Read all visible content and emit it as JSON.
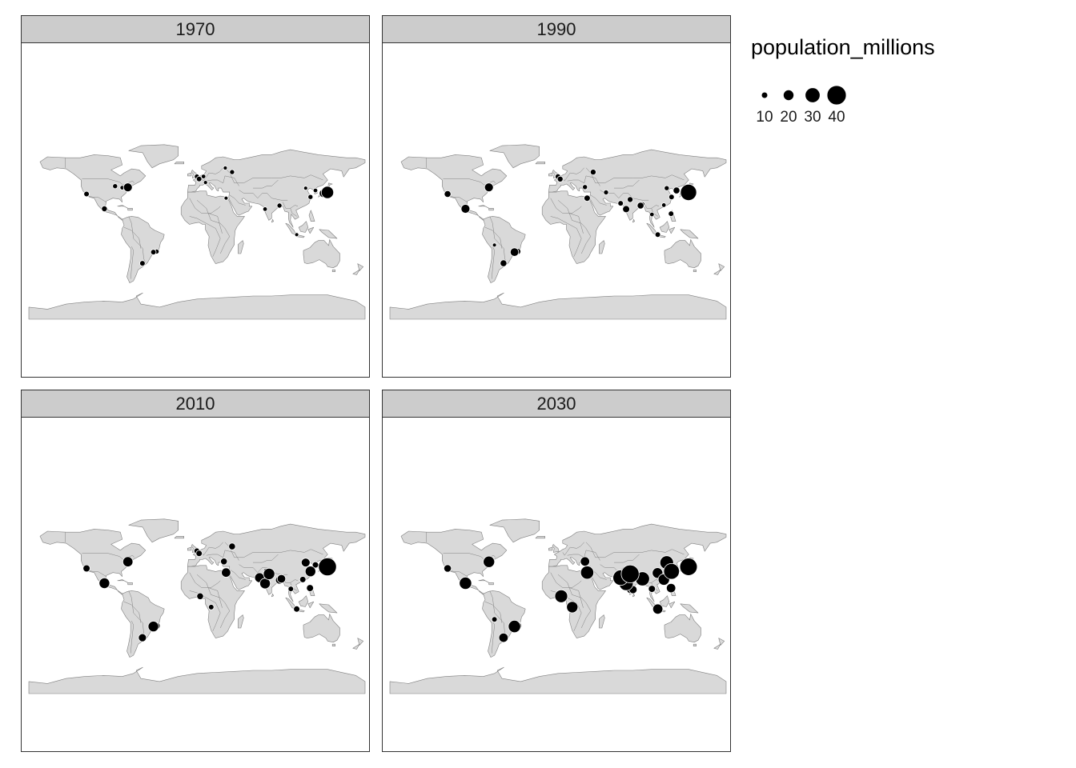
{
  "legend": {
    "title": "population_millions",
    "entries": [
      {
        "label": "10",
        "value": 10
      },
      {
        "label": "20",
        "value": 20
      },
      {
        "label": "30",
        "value": 30
      },
      {
        "label": "40",
        "value": 40
      }
    ]
  },
  "colors": {
    "land": "#d9d9d9",
    "border": "#7f7f7f",
    "point": "#000000",
    "strip": "#cccccc"
  },
  "panels": [
    {
      "year": "1970",
      "cities": [
        {
          "lon": -118.2,
          "lat": 34.1,
          "pop": 8
        },
        {
          "lon": -99.1,
          "lat": 19.4,
          "pop": 9
        },
        {
          "lon": -87.6,
          "lat": 41.9,
          "pop": 7
        },
        {
          "lon": -80.0,
          "lat": 40.4,
          "pop": 6
        },
        {
          "lon": -74.0,
          "lat": 40.7,
          "pop": 16
        },
        {
          "lon": -46.6,
          "lat": -23.5,
          "pop": 8
        },
        {
          "lon": -43.2,
          "lat": -22.9,
          "pop": 7
        },
        {
          "lon": -58.4,
          "lat": -34.6,
          "pop": 8
        },
        {
          "lon": -0.1,
          "lat": 51.5,
          "pop": 7
        },
        {
          "lon": 2.3,
          "lat": 48.9,
          "pop": 8
        },
        {
          "lon": 7.0,
          "lat": 51.5,
          "pop": 6
        },
        {
          "lon": 9.2,
          "lat": 45.5,
          "pop": 5
        },
        {
          "lon": 37.6,
          "lat": 55.8,
          "pop": 7
        },
        {
          "lon": 30.3,
          "lat": 59.9,
          "pop": 5
        },
        {
          "lon": 31.2,
          "lat": 30.0,
          "pop": 5
        },
        {
          "lon": 72.9,
          "lat": 19.1,
          "pop": 6
        },
        {
          "lon": 88.4,
          "lat": 22.6,
          "pop": 7
        },
        {
          "lon": 121.5,
          "lat": 31.2,
          "pop": 7
        },
        {
          "lon": 116.4,
          "lat": 39.9,
          "pop": 5
        },
        {
          "lon": 106.8,
          "lat": -6.2,
          "pop": 4
        },
        {
          "lon": 126.9,
          "lat": 37.6,
          "pop": 6
        },
        {
          "lon": 135.5,
          "lat": 34.7,
          "pop": 15
        },
        {
          "lon": 139.7,
          "lat": 35.7,
          "pop": 24
        }
      ]
    },
    {
      "year": "1990",
      "cities": [
        {
          "lon": -118.2,
          "lat": 34.1,
          "pop": 11
        },
        {
          "lon": -99.1,
          "lat": 19.4,
          "pop": 16
        },
        {
          "lon": -74.0,
          "lat": 40.7,
          "pop": 16
        },
        {
          "lon": -68.1,
          "lat": -16.5,
          "pop": 4
        },
        {
          "lon": -46.6,
          "lat": -23.5,
          "pop": 15
        },
        {
          "lon": -43.2,
          "lat": -22.9,
          "pop": 10
        },
        {
          "lon": -58.4,
          "lat": -34.6,
          "pop": 11
        },
        {
          "lon": -0.1,
          "lat": 51.5,
          "pop": 8
        },
        {
          "lon": 2.3,
          "lat": 48.9,
          "pop": 9
        },
        {
          "lon": 37.6,
          "lat": 55.8,
          "pop": 9
        },
        {
          "lon": 28.9,
          "lat": 41.0,
          "pop": 7
        },
        {
          "lon": 31.2,
          "lat": 30.0,
          "pop": 10
        },
        {
          "lon": 51.4,
          "lat": 35.7,
          "pop": 7
        },
        {
          "lon": 67.0,
          "lat": 24.9,
          "pop": 8
        },
        {
          "lon": 77.2,
          "lat": 28.6,
          "pop": 9
        },
        {
          "lon": 72.9,
          "lat": 19.1,
          "pop": 12
        },
        {
          "lon": 88.4,
          "lat": 22.6,
          "pop": 11
        },
        {
          "lon": 90.4,
          "lat": 23.8,
          "pop": 7
        },
        {
          "lon": 100.5,
          "lat": 13.8,
          "pop": 6
        },
        {
          "lon": 106.8,
          "lat": -6.2,
          "pop": 8
        },
        {
          "lon": 116.4,
          "lat": 39.9,
          "pop": 7
        },
        {
          "lon": 121.5,
          "lat": 31.2,
          "pop": 8
        },
        {
          "lon": 113.3,
          "lat": 23.1,
          "pop": 6
        },
        {
          "lon": 121.0,
          "lat": 14.6,
          "pop": 8
        },
        {
          "lon": 126.9,
          "lat": 37.6,
          "pop": 11
        },
        {
          "lon": 135.5,
          "lat": 34.7,
          "pop": 18
        },
        {
          "lon": 139.7,
          "lat": 35.7,
          "pop": 33
        }
      ]
    },
    {
      "year": "2010",
      "cities": [
        {
          "lon": -118.2,
          "lat": 34.1,
          "pop": 12
        },
        {
          "lon": -99.1,
          "lat": 19.4,
          "pop": 20
        },
        {
          "lon": -74.0,
          "lat": 40.7,
          "pop": 19
        },
        {
          "lon": -46.6,
          "lat": -23.5,
          "pop": 20
        },
        {
          "lon": -43.2,
          "lat": -22.9,
          "pop": 12
        },
        {
          "lon": -58.4,
          "lat": -34.6,
          "pop": 14
        },
        {
          "lon": -0.1,
          "lat": 51.5,
          "pop": 9
        },
        {
          "lon": 2.3,
          "lat": 48.9,
          "pop": 10
        },
        {
          "lon": 37.6,
          "lat": 55.8,
          "pop": 11
        },
        {
          "lon": 28.9,
          "lat": 41.0,
          "pop": 11
        },
        {
          "lon": 31.2,
          "lat": 30.0,
          "pop": 17
        },
        {
          "lon": 3.4,
          "lat": 6.5,
          "pop": 11
        },
        {
          "lon": 15.3,
          "lat": -4.3,
          "pop": 8
        },
        {
          "lon": 67.0,
          "lat": 24.9,
          "pop": 18
        },
        {
          "lon": 74.3,
          "lat": 31.5,
          "pop": 9
        },
        {
          "lon": 77.2,
          "lat": 28.6,
          "pop": 22
        },
        {
          "lon": 72.9,
          "lat": 19.1,
          "pop": 20
        },
        {
          "lon": 88.4,
          "lat": 22.6,
          "pop": 14
        },
        {
          "lon": 90.4,
          "lat": 23.8,
          "pop": 15
        },
        {
          "lon": 100.5,
          "lat": 13.8,
          "pop": 8
        },
        {
          "lon": 106.8,
          "lat": -6.2,
          "pop": 10
        },
        {
          "lon": 116.4,
          "lat": 39.9,
          "pop": 16
        },
        {
          "lon": 121.5,
          "lat": 31.2,
          "pop": 20
        },
        {
          "lon": 113.3,
          "lat": 23.1,
          "pop": 10
        },
        {
          "lon": 121.0,
          "lat": 14.6,
          "pop": 12
        },
        {
          "lon": 126.9,
          "lat": 37.6,
          "pop": 10
        },
        {
          "lon": 135.5,
          "lat": 34.7,
          "pop": 19
        },
        {
          "lon": 139.7,
          "lat": 35.7,
          "pop": 37
        }
      ]
    },
    {
      "year": "2030",
      "cities": [
        {
          "lon": -118.2,
          "lat": 34.1,
          "pop": 13
        },
        {
          "lon": -99.1,
          "lat": 19.4,
          "pop": 24
        },
        {
          "lon": -74.0,
          "lat": 40.7,
          "pop": 22
        },
        {
          "lon": -68.1,
          "lat": -16.5,
          "pop": 8
        },
        {
          "lon": -46.6,
          "lat": -23.5,
          "pop": 24
        },
        {
          "lon": -43.2,
          "lat": -22.9,
          "pop": 14
        },
        {
          "lon": -58.4,
          "lat": -34.6,
          "pop": 17
        },
        {
          "lon": 28.9,
          "lat": 41.0,
          "pop": 17
        },
        {
          "lon": 31.2,
          "lat": 30.0,
          "pop": 26
        },
        {
          "lon": 3.4,
          "lat": 6.5,
          "pop": 25
        },
        {
          "lon": 15.3,
          "lat": -4.3,
          "pop": 22
        },
        {
          "lon": 67.0,
          "lat": 24.9,
          "pop": 31
        },
        {
          "lon": 74.3,
          "lat": 31.5,
          "pop": 18
        },
        {
          "lon": 77.2,
          "lat": 28.6,
          "pop": 37
        },
        {
          "lon": 72.9,
          "lat": 19.1,
          "pop": 28
        },
        {
          "lon": 80.3,
          "lat": 13.1,
          "pop": 14
        },
        {
          "lon": 77.6,
          "lat": 13.0,
          "pop": 13
        },
        {
          "lon": 88.4,
          "lat": 22.6,
          "pop": 21
        },
        {
          "lon": 90.4,
          "lat": 23.8,
          "pop": 28
        },
        {
          "lon": 100.5,
          "lat": 13.8,
          "pop": 12
        },
        {
          "lon": 106.8,
          "lat": -6.2,
          "pop": 19
        },
        {
          "lon": 116.4,
          "lat": 39.9,
          "pop": 27
        },
        {
          "lon": 121.5,
          "lat": 31.2,
          "pop": 32
        },
        {
          "lon": 113.3,
          "lat": 23.1,
          "pop": 22
        },
        {
          "lon": 106.5,
          "lat": 29.6,
          "pop": 20
        },
        {
          "lon": 121.0,
          "lat": 14.6,
          "pop": 17
        },
        {
          "lon": 135.5,
          "lat": 34.7,
          "pop": 19
        },
        {
          "lon": 139.7,
          "lat": 35.7,
          "pop": 36
        }
      ]
    }
  ]
}
